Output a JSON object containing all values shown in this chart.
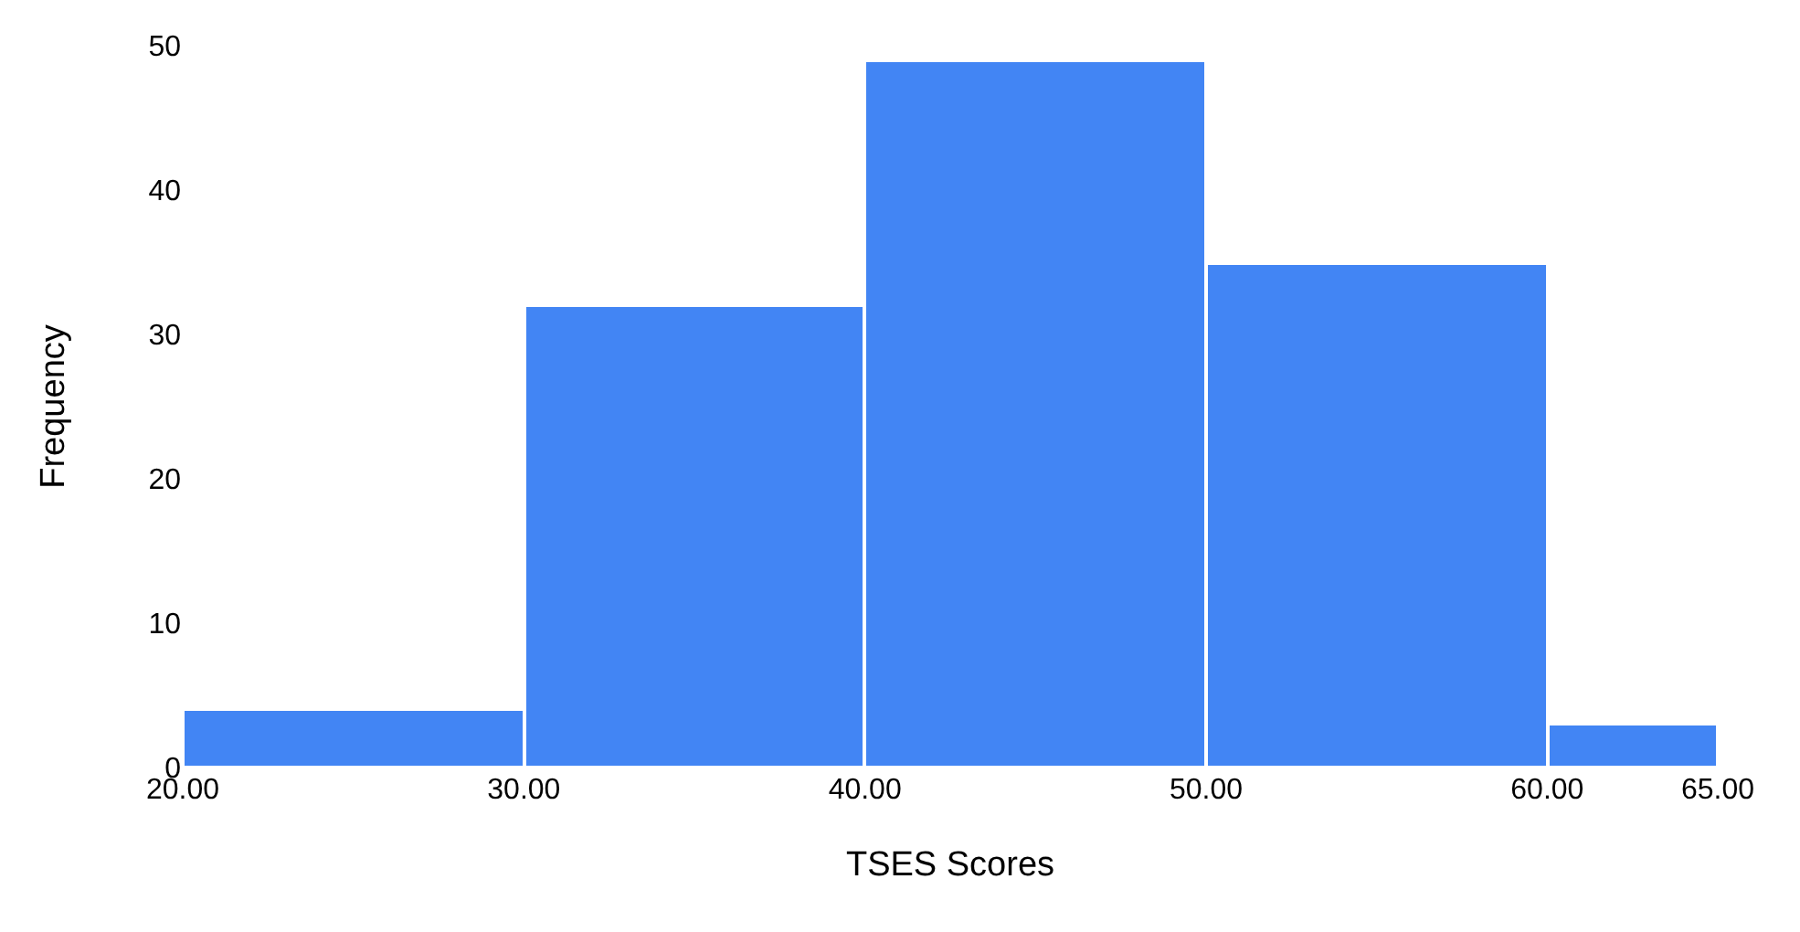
{
  "chart_data": {
    "type": "histogram",
    "xlabel": "TSES Scores",
    "ylabel": "Frequency",
    "bins": [
      20,
      30,
      40,
      50,
      60,
      65
    ],
    "values": [
      4,
      32,
      49,
      35,
      3
    ],
    "color": "#4285f4",
    "xlim": [
      20,
      65
    ],
    "xticks": [
      {
        "value": 20,
        "label": "20.00"
      },
      {
        "value": 30,
        "label": "30.00"
      },
      {
        "value": 40,
        "label": "40.00"
      },
      {
        "value": 50,
        "label": "50.00"
      },
      {
        "value": 60,
        "label": "60.00"
      },
      {
        "value": 65,
        "label": "65.00"
      }
    ],
    "ylim": [
      0,
      50
    ],
    "yticks": [
      0,
      10,
      20,
      30,
      40,
      50
    ],
    "grid": false
  }
}
